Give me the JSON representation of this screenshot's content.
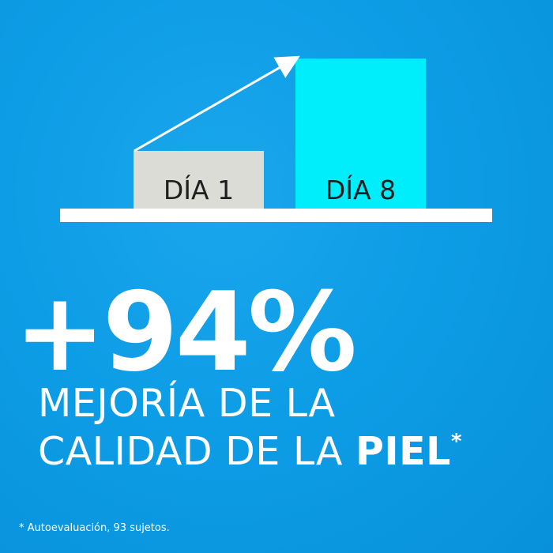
{
  "chart_data": {
    "type": "bar",
    "categories": [
      "DÍA 1",
      "DÍA 8"
    ],
    "values": [
      1,
      2.6
    ],
    "bar_colors": [
      "#dcdcd6",
      "#00eefc"
    ],
    "baseline_color": "#ffffff",
    "arrow_color": "#ffffff",
    "grid": false,
    "title": "",
    "xlabel": "",
    "ylabel": ""
  },
  "headline": {
    "value": "+94%",
    "line1": "MEJORÍA DE LA",
    "line2_prefix": "CALIDAD DE LA ",
    "line2_strong": "PIEL",
    "marker": "*"
  },
  "footnote": "* Autoevaluación, 93 sujetos.",
  "colors": {
    "background": "#0d9de6",
    "text": "#ffffff"
  }
}
